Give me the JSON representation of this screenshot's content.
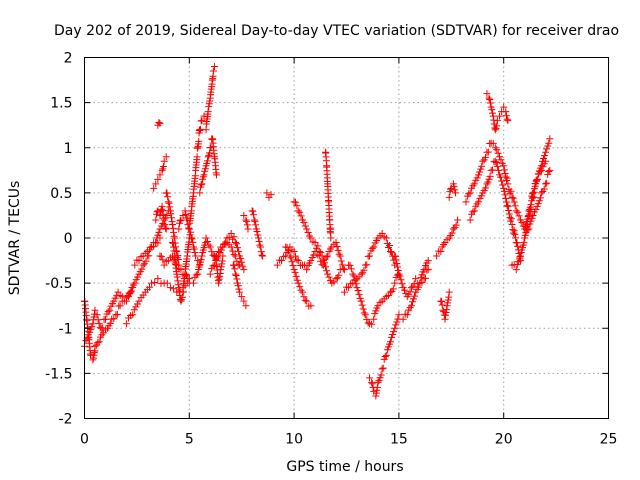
{
  "chart_data": {
    "type": "scatter",
    "title": "Day 202 of 2019, Sidereal Day-to-day VTEC variation (SDTVAR) for receiver drao",
    "xlabel": "GPS time / hours",
    "ylabel": "SDTVAR / TECUs",
    "xlim": [
      0,
      25
    ],
    "ylim": [
      -2,
      2
    ],
    "grid": true,
    "marker": "+",
    "color": "#ff0000",
    "x_ticks": [
      0,
      5,
      10,
      15,
      20,
      25
    ],
    "x_tick_labels": [
      "0",
      "5",
      "10",
      "15",
      "20",
      "25"
    ],
    "y_ticks": [
      -2,
      -1.5,
      -1,
      -0.5,
      0,
      0.5,
      1,
      1.5,
      2
    ],
    "y_tick_labels": [
      "-2",
      "-1.5",
      "-1",
      "-0.5",
      "0",
      "0.5",
      "1",
      "1.5",
      "2"
    ],
    "series": [
      {
        "name": "SDTVAR",
        "segments": [
          {
            "x": [
              0.0,
              0.2,
              0.4,
              0.5,
              0.6,
              0.8,
              1.0,
              1.2,
              1.4,
              1.6,
              1.8
            ],
            "y": [
              -1.2,
              -1.1,
              -0.95,
              -0.8,
              -0.85,
              -1.0,
              -0.9,
              -0.8,
              -0.7,
              -0.6,
              -0.65
            ]
          },
          {
            "x": [
              0.0,
              0.1,
              0.2,
              0.3,
              0.4,
              0.5
            ],
            "y": [
              -0.7,
              -0.9,
              -1.1,
              -1.3,
              -1.35,
              -1.2
            ]
          },
          {
            "x": [
              0.5,
              0.7,
              0.9,
              1.1,
              1.3,
              1.5,
              1.7,
              1.9,
              2.1,
              2.3
            ],
            "y": [
              -1.25,
              -1.15,
              -1.05,
              -1.0,
              -0.9,
              -0.85,
              -0.75,
              -0.7,
              -0.65,
              -0.55
            ]
          },
          {
            "x": [
              2.0,
              2.2,
              2.4,
              2.6,
              2.8,
              3.0,
              3.2,
              3.4,
              3.6,
              3.8,
              4.0
            ],
            "y": [
              -0.7,
              -0.6,
              -0.5,
              -0.4,
              -0.3,
              -0.2,
              -0.1,
              -0.05,
              0.1,
              0.2,
              0.3
            ]
          },
          {
            "x": [
              2.0,
              2.3,
              2.6,
              2.9,
              3.2,
              3.5,
              3.8,
              4.1,
              4.4,
              4.7,
              5.0
            ],
            "y": [
              -0.95,
              -0.85,
              -0.7,
              -0.6,
              -0.5,
              -0.45,
              -0.5,
              -0.55,
              -0.6,
              -0.55,
              -0.45
            ]
          },
          {
            "x": [
              2.4,
              2.6,
              2.8,
              3.0,
              3.2,
              3.4,
              3.6
            ],
            "y": [
              -0.3,
              -0.25,
              -0.2,
              -0.15,
              -0.1,
              -0.05,
              0.0
            ]
          },
          {
            "x": [
              3.4,
              3.5,
              3.6,
              3.7,
              3.8,
              3.9
            ],
            "y": [
              0.2,
              0.3,
              0.25,
              0.35,
              0.2,
              0.1
            ]
          },
          {
            "x": [
              3.3,
              3.4,
              3.5,
              3.6,
              3.7,
              3.8,
              3.9
            ],
            "y": [
              0.55,
              0.6,
              0.65,
              0.7,
              0.75,
              0.85,
              0.9
            ]
          },
          {
            "x": [
              3.5,
              3.55,
              3.6
            ],
            "y": [
              1.25,
              1.28,
              1.27
            ]
          },
          {
            "x": [
              3.6,
              3.8,
              4.0,
              4.2,
              4.4,
              4.6,
              4.8,
              5.0
            ],
            "y": [
              -0.2,
              -0.3,
              -0.25,
              -0.2,
              -0.3,
              -0.35,
              -0.4,
              -0.5
            ]
          },
          {
            "x": [
              3.9,
              4.0,
              4.1,
              4.2,
              4.3,
              4.4,
              4.5
            ],
            "y": [
              0.5,
              0.4,
              0.3,
              0.15,
              0.0,
              -0.15,
              -0.3
            ]
          },
          {
            "x": [
              4.2,
              4.3,
              4.4,
              4.5,
              4.6,
              4.7,
              4.8,
              4.9,
              5.0
            ],
            "y": [
              -0.05,
              -0.2,
              -0.4,
              -0.55,
              -0.7,
              -0.6,
              -0.4,
              -0.2,
              0.0
            ]
          },
          {
            "x": [
              4.5,
              4.6,
              4.7,
              4.8,
              4.9,
              5.0,
              5.1,
              5.2,
              5.3,
              5.4,
              5.5
            ],
            "y": [
              0.1,
              0.2,
              0.25,
              0.3,
              0.2,
              0.1,
              0.0,
              -0.1,
              -0.2,
              -0.25,
              -0.3
            ]
          },
          {
            "x": [
              5.0,
              5.1,
              5.2,
              5.3,
              5.4,
              5.5,
              5.6,
              5.7
            ],
            "y": [
              0.1,
              0.3,
              0.5,
              0.75,
              1.0,
              1.2,
              1.3,
              1.35
            ]
          },
          {
            "x": [
              5.2,
              5.4,
              5.6,
              5.8,
              6.0,
              6.2,
              6.4,
              6.6,
              6.8,
              7.0,
              7.2,
              7.4
            ],
            "y": [
              -0.5,
              -0.4,
              -0.2,
              0.0,
              -0.1,
              -0.2,
              -0.15,
              -0.1,
              -0.05,
              -0.1,
              -0.2,
              -0.3
            ]
          },
          {
            "x": [
              5.5,
              5.6,
              5.7,
              5.8,
              5.9,
              6.0,
              6.1,
              6.2,
              6.3
            ],
            "y": [
              0.5,
              0.6,
              0.7,
              0.8,
              0.9,
              1.0,
              1.1,
              0.9,
              0.7
            ]
          },
          {
            "x": [
              5.8,
              5.9,
              6.0,
              6.05,
              6.1,
              6.15,
              6.2
            ],
            "y": [
              1.2,
              1.4,
              1.55,
              1.65,
              1.75,
              1.85,
              1.9
            ]
          },
          {
            "x": [
              6.0,
              6.2,
              6.4,
              6.6,
              6.8,
              7.0,
              7.2,
              7.4,
              7.6
            ],
            "y": [
              -0.4,
              -0.3,
              -0.2,
              -0.1,
              0.0,
              0.05,
              -0.05,
              -0.2,
              -0.35
            ]
          },
          {
            "x": [
              6.2,
              6.3,
              6.4,
              6.5,
              6.6
            ],
            "y": [
              -0.2,
              -0.3,
              -0.5,
              -0.35,
              -0.2
            ]
          },
          {
            "x": [
              7.1,
              7.2,
              7.3,
              7.4,
              7.5,
              7.6,
              7.7
            ],
            "y": [
              -0.3,
              -0.4,
              -0.5,
              -0.6,
              -0.65,
              -0.7,
              -0.75
            ]
          },
          {
            "x": [
              7.6,
              7.7,
              7.8
            ],
            "y": [
              0.25,
              0.2,
              0.1
            ]
          },
          {
            "x": [
              8.0,
              8.1,
              8.2,
              8.3,
              8.4,
              8.5
            ],
            "y": [
              0.3,
              0.2,
              0.1,
              0.0,
              -0.1,
              -0.2
            ]
          },
          {
            "x": [
              8.7,
              8.8,
              8.9
            ],
            "y": [
              0.5,
              0.45,
              0.48
            ]
          },
          {
            "x": [
              9.2,
              9.4,
              9.6,
              9.8,
              10.0,
              10.2,
              10.4,
              10.6,
              10.8,
              11.0,
              11.2,
              11.4,
              11.6,
              11.8,
              12.0,
              12.2,
              12.4
            ],
            "y": [
              -0.3,
              -0.25,
              -0.2,
              -0.1,
              -0.15,
              -0.25,
              -0.3,
              -0.35,
              -0.25,
              -0.15,
              -0.2,
              -0.3,
              -0.2,
              -0.1,
              -0.05,
              -0.2,
              -0.35
            ]
          },
          {
            "x": [
              9.6,
              9.8,
              10.0,
              10.2,
              10.4,
              10.6,
              10.8
            ],
            "y": [
              -0.1,
              -0.2,
              -0.35,
              -0.5,
              -0.6,
              -0.7,
              -0.75
            ]
          },
          {
            "x": [
              10.0,
              10.2,
              10.4,
              10.6,
              10.8,
              11.0,
              11.2,
              11.4,
              11.6,
              11.8,
              12.0,
              12.2
            ],
            "y": [
              0.4,
              0.3,
              0.2,
              0.1,
              0.0,
              -0.05,
              -0.15,
              -0.25,
              -0.4,
              -0.5,
              -0.45,
              -0.35
            ]
          },
          {
            "x": [
              11.5,
              11.55,
              11.6,
              11.65,
              11.7,
              11.75
            ],
            "y": [
              0.95,
              0.8,
              0.6,
              0.4,
              0.2,
              0.0
            ]
          },
          {
            "x": [
              12.4,
              12.6,
              12.8,
              13.0,
              13.2,
              13.4,
              13.6,
              13.8,
              14.0,
              14.2,
              14.4,
              14.6,
              14.8
            ],
            "y": [
              -0.6,
              -0.55,
              -0.5,
              -0.45,
              -0.4,
              -0.3,
              -0.2,
              -0.1,
              0.0,
              0.05,
              0.0,
              -0.15,
              -0.3
            ]
          },
          {
            "x": [
              12.6,
              12.8,
              13.0,
              13.2,
              13.4,
              13.6,
              13.8,
              14.0,
              14.2,
              14.4,
              14.6,
              14.8,
              15.0
            ],
            "y": [
              -0.3,
              -0.4,
              -0.55,
              -0.7,
              -0.85,
              -0.95,
              -0.9,
              -0.75,
              -0.7,
              -0.65,
              -0.6,
              -0.5,
              -0.4
            ]
          },
          {
            "x": [
              13.6,
              13.7,
              13.8,
              13.9,
              14.0,
              14.2,
              14.4,
              14.6,
              14.8,
              15.0
            ],
            "y": [
              -1.55,
              -1.6,
              -1.7,
              -1.75,
              -1.6,
              -1.45,
              -1.3,
              -1.15,
              -1.0,
              -0.85
            ]
          },
          {
            "x": [
              14.8,
              15.0,
              15.2,
              15.4,
              15.6,
              15.8,
              16.0,
              16.2,
              16.4
            ],
            "y": [
              -0.2,
              -0.4,
              -0.55,
              -0.65,
              -0.55,
              -0.45,
              -0.5,
              -0.35,
              -0.25
            ]
          },
          {
            "x": [
              15.2,
              15.4,
              15.6,
              15.8,
              16.0,
              16.2,
              16.4
            ],
            "y": [
              -0.9,
              -0.85,
              -0.75,
              -0.6,
              -0.5,
              -0.45,
              -0.35
            ]
          },
          {
            "x": [
              17.0,
              17.1,
              17.2,
              17.3,
              17.4
            ],
            "y": [
              -0.7,
              -0.8,
              -0.9,
              -0.75,
              -0.6
            ]
          },
          {
            "x": [
              16.8,
              17.0,
              17.2,
              17.4,
              17.6,
              17.8
            ],
            "y": [
              -0.2,
              -0.15,
              -0.05,
              0.0,
              0.1,
              0.2
            ]
          },
          {
            "x": [
              17.4,
              17.5,
              17.6,
              17.7
            ],
            "y": [
              0.45,
              0.55,
              0.6,
              0.5
            ]
          },
          {
            "x": [
              18.2,
              18.4,
              18.6,
              18.8,
              19.0,
              19.2,
              19.4,
              19.6,
              19.8,
              20.0,
              20.2,
              20.4,
              20.6,
              20.8,
              21.0,
              21.2,
              21.4,
              21.6,
              21.8,
              22.0
            ],
            "y": [
              0.4,
              0.5,
              0.6,
              0.7,
              0.85,
              0.95,
              1.05,
              1.0,
              0.9,
              0.8,
              0.6,
              0.45,
              0.3,
              0.2,
              0.1,
              0.3,
              0.5,
              0.65,
              0.75,
              0.85
            ]
          },
          {
            "x": [
              18.4,
              18.6,
              18.8,
              19.0,
              19.2,
              19.4,
              19.6,
              19.8,
              20.0,
              20.2,
              20.4,
              20.6,
              20.8
            ],
            "y": [
              0.2,
              0.3,
              0.4,
              0.5,
              0.6,
              0.75,
              0.85,
              0.7,
              0.55,
              0.35,
              0.15,
              -0.05,
              -0.25
            ]
          },
          {
            "x": [
              19.2,
              19.3,
              19.4,
              19.5,
              19.6,
              19.7,
              19.8,
              19.9,
              20.0,
              20.1,
              20.2
            ],
            "y": [
              1.6,
              1.55,
              1.45,
              1.35,
              1.2,
              1.3,
              1.35,
              1.4,
              1.45,
              1.4,
              1.3
            ]
          },
          {
            "x": [
              20.4,
              20.6,
              20.8,
              21.0,
              21.2,
              21.4,
              21.6,
              21.8,
              22.0,
              22.2
            ],
            "y": [
              -0.3,
              -0.35,
              -0.2,
              0.0,
              0.25,
              0.45,
              0.65,
              0.8,
              0.95,
              1.1
            ]
          },
          {
            "x": [
              21.0,
              21.2,
              21.4,
              21.6,
              21.8,
              22.0,
              22.2
            ],
            "y": [
              0.0,
              0.1,
              0.25,
              0.35,
              0.5,
              0.6,
              0.75
            ]
          }
        ]
      }
    ]
  }
}
